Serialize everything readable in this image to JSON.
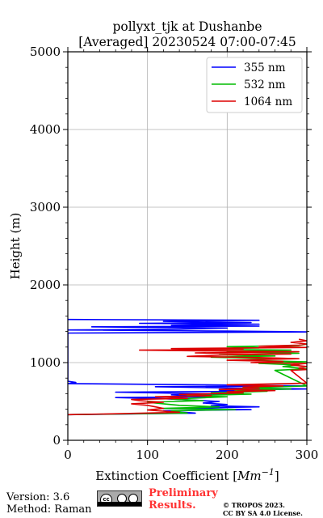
{
  "chart_data": {
    "type": "line",
    "title": "pollyxt_tjk at Dushanbe",
    "subtitle": "[Averaged] 20230524 07:00-07:45",
    "xlabel_prefix": "Extinction Coefficient [",
    "xlabel_unit": "Mm",
    "xlabel_exp": "−1",
    "xlabel_suffix": "]",
    "ylabel": "Height (m)",
    "xlim": [
      0,
      300
    ],
    "ylim": [
      0,
      5000
    ],
    "xticks": [
      "0",
      "100",
      "200",
      "300"
    ],
    "yticks": [
      "0",
      "1000",
      "2000",
      "3000",
      "4000",
      "5000"
    ],
    "grid": true,
    "legend_position": "top-right",
    "series": [
      {
        "name": "355 nm",
        "color": "#0000ff",
        "points": [
          [
            0,
            330
          ],
          [
            160,
            350
          ],
          [
            120,
            380
          ],
          [
            230,
            395
          ],
          [
            130,
            410
          ],
          [
            240,
            430
          ],
          [
            180,
            445
          ],
          [
            200,
            460
          ],
          [
            170,
            480
          ],
          [
            190,
            500
          ],
          [
            150,
            520
          ],
          [
            120,
            535
          ],
          [
            60,
            550
          ],
          [
            180,
            560
          ],
          [
            150,
            575
          ],
          [
            130,
            585
          ],
          [
            200,
            595
          ],
          [
            140,
            605
          ],
          [
            60,
            620
          ],
          [
            210,
            630
          ],
          [
            190,
            645
          ],
          [
            300,
            660
          ],
          [
            200,
            675
          ],
          [
            110,
            690
          ],
          [
            300,
            700
          ],
          [
            170,
            715
          ],
          [
            0,
            730
          ],
          [
            10,
            745
          ],
          [
            0,
            760
          ],
          [
            0,
            1380
          ],
          [
            300,
            1395
          ],
          [
            200,
            1405
          ],
          [
            0,
            1420
          ],
          [
            140,
            1430
          ],
          [
            200,
            1445
          ],
          [
            30,
            1460
          ],
          [
            240,
            1470
          ],
          [
            130,
            1480
          ],
          [
            240,
            1495
          ],
          [
            90,
            1505
          ],
          [
            230,
            1515
          ],
          [
            120,
            1530
          ],
          [
            240,
            1545
          ],
          [
            0,
            1555
          ]
        ]
      },
      {
        "name": "532 nm",
        "color": "#00bb00",
        "points": [
          [
            0,
            330
          ],
          [
            150,
            350
          ],
          [
            130,
            380
          ],
          [
            210,
            395
          ],
          [
            120,
            410
          ],
          [
            190,
            430
          ],
          [
            140,
            450
          ],
          [
            120,
            470
          ],
          [
            100,
            490
          ],
          [
            170,
            510
          ],
          [
            130,
            530
          ],
          [
            200,
            560
          ],
          [
            150,
            575
          ],
          [
            230,
            595
          ],
          [
            180,
            610
          ],
          [
            250,
            630
          ],
          [
            210,
            645
          ],
          [
            280,
            660
          ],
          [
            220,
            675
          ],
          [
            300,
            700
          ],
          [
            260,
            900
          ],
          [
            300,
            920
          ],
          [
            270,
            950
          ],
          [
            290,
            970
          ],
          [
            240,
            990
          ],
          [
            300,
            1010
          ],
          [
            220,
            1030
          ],
          [
            260,
            1050
          ],
          [
            180,
            1070
          ],
          [
            260,
            1085
          ],
          [
            190,
            1100
          ],
          [
            290,
            1120
          ],
          [
            200,
            1140
          ],
          [
            280,
            1160
          ],
          [
            140,
            1175
          ],
          [
            240,
            1190
          ],
          [
            200,
            1205
          ],
          [
            290,
            1220
          ],
          [
            300,
            1240
          ]
        ]
      },
      {
        "name": "1064 nm",
        "color": "#dd0000",
        "points": [
          [
            0,
            330
          ],
          [
            50,
            340
          ],
          [
            140,
            360
          ],
          [
            100,
            390
          ],
          [
            120,
            410
          ],
          [
            110,
            430
          ],
          [
            100,
            450
          ],
          [
            80,
            470
          ],
          [
            120,
            490
          ],
          [
            90,
            510
          ],
          [
            80,
            525
          ],
          [
            150,
            540
          ],
          [
            110,
            560
          ],
          [
            180,
            575
          ],
          [
            140,
            590
          ],
          [
            220,
            610
          ],
          [
            200,
            625
          ],
          [
            260,
            640
          ],
          [
            190,
            655
          ],
          [
            240,
            670
          ],
          [
            220,
            685
          ],
          [
            270,
            700
          ],
          [
            200,
            715
          ],
          [
            300,
            735
          ],
          [
            280,
            900
          ],
          [
            300,
            910
          ],
          [
            290,
            930
          ],
          [
            300,
            950
          ],
          [
            280,
            970
          ],
          [
            300,
            990
          ],
          [
            230,
            1000
          ],
          [
            270,
            1015
          ],
          [
            200,
            1030
          ],
          [
            290,
            1050
          ],
          [
            240,
            1065
          ],
          [
            150,
            1080
          ],
          [
            200,
            1100
          ],
          [
            280,
            1110
          ],
          [
            160,
            1125
          ],
          [
            290,
            1140
          ],
          [
            180,
            1150
          ],
          [
            90,
            1160
          ],
          [
            220,
            1170
          ],
          [
            130,
            1180
          ],
          [
            300,
            1195
          ],
          [
            240,
            1210
          ],
          [
            290,
            1225
          ],
          [
            300,
            1240
          ],
          [
            280,
            1260
          ],
          [
            300,
            1280
          ],
          [
            290,
            1300
          ]
        ]
      }
    ]
  },
  "footer": {
    "version": "Version: 3.6",
    "method": "Method: Raman",
    "preliminary_line1": "Preliminary",
    "preliminary_line2": "Results.",
    "copyright_line1": "© TROPOS 2023.",
    "copyright_line2": "CC BY SA 4.0 License.",
    "cc_label": "cc"
  }
}
